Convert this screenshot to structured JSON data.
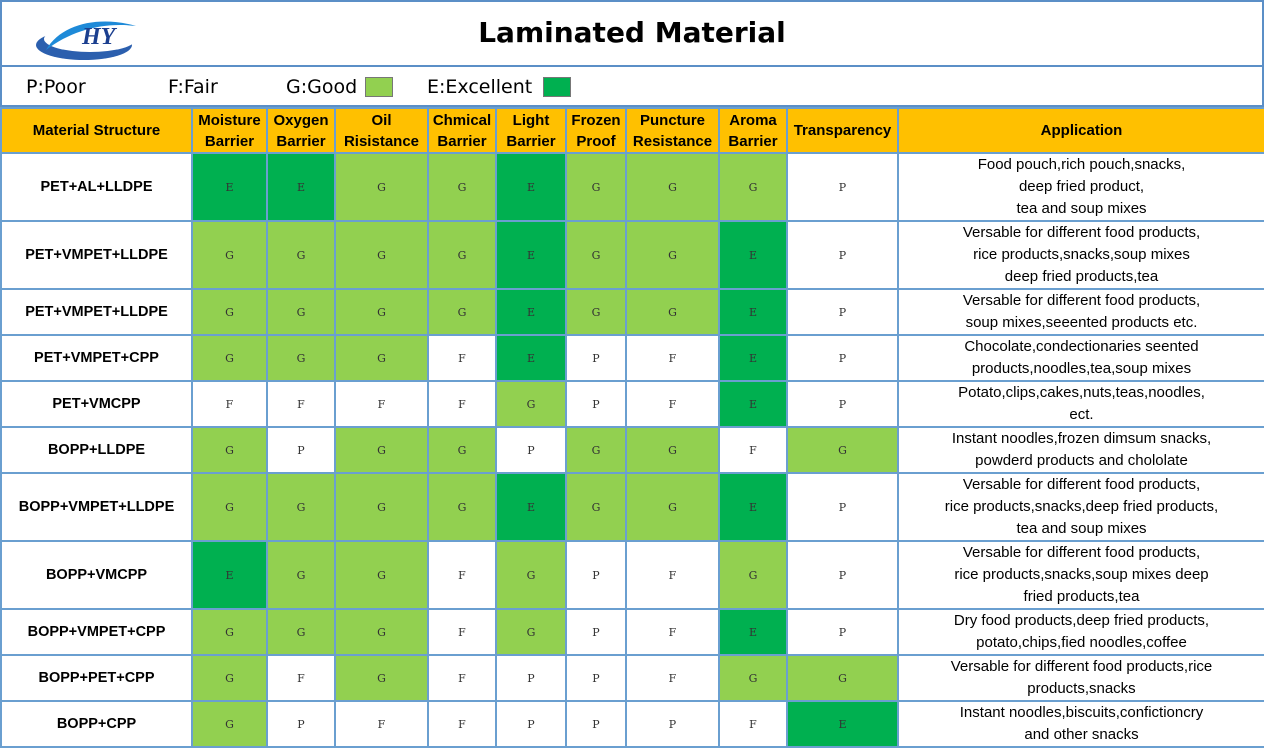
{
  "title": "Laminated Material",
  "logo_text": "HY",
  "legend": [
    {
      "label": "P:Poor",
      "color": ""
    },
    {
      "label": "F:Fair",
      "color": ""
    },
    {
      "label": "G:Good",
      "color": "#92d050"
    },
    {
      "label": "E:Excellent",
      "color": "#00b050"
    }
  ],
  "colors": {
    "excellent": "#00b050",
    "good": "#92d050",
    "header": "#ffc000",
    "grid": "#6a9fd0"
  },
  "headers": [
    "Material Structure",
    "Moisture Barrier",
    "Oxygen Barrier",
    "Oil Risistance",
    "Chmical Barrier",
    "Light Barrier",
    "Frozen Proof",
    "Puncture Resistance",
    "Aroma Barrier",
    "Transparency",
    "Application"
  ],
  "rows": [
    {
      "material": "PET+AL+LLDPE",
      "ratings": [
        "E",
        "E",
        "G",
        "G",
        "E",
        "G",
        "G",
        "G",
        "P"
      ],
      "application": [
        "Food pouch,rich pouch,snacks,",
        "deep fried product,",
        "tea and soup mixes"
      ]
    },
    {
      "material": "PET+VMPET+LLDPE",
      "ratings": [
        "G",
        "G",
        "G",
        "G",
        "E",
        "G",
        "G",
        "E",
        "P"
      ],
      "application": [
        "Versable for different food products,",
        "rice products,snacks,soup mixes",
        "deep fried products,tea"
      ]
    },
    {
      "material": "PET+VMPET+LLDPE",
      "ratings": [
        "G",
        "G",
        "G",
        "G",
        "E",
        "G",
        "G",
        "E",
        "P"
      ],
      "application": [
        "Versable for different food products,",
        "soup mixes,seeented products etc."
      ]
    },
    {
      "material": "PET+VMPET+CPP",
      "ratings": [
        "G",
        "G",
        "G",
        "F",
        "E",
        "P",
        "F",
        "E",
        "P"
      ],
      "application": [
        "Chocolate,condectionaries seented",
        "products,noodles,tea,soup mixes"
      ]
    },
    {
      "material": "PET+VMCPP",
      "ratings": [
        "F",
        "F",
        "F",
        "F",
        "G",
        "P",
        "F",
        "E",
        "P"
      ],
      "application": [
        "Potato,clips,cakes,nuts,teas,noodles,",
        "ect."
      ]
    },
    {
      "material": "BOPP+LLDPE",
      "ratings": [
        "G",
        "P",
        "G",
        "G",
        "P",
        "G",
        "G",
        "F",
        "G"
      ],
      "application": [
        "Instant noodles,frozen dimsum snacks,",
        "powderd products and chololate"
      ]
    },
    {
      "material": "BOPP+VMPET+LLDPE",
      "ratings": [
        "G",
        "G",
        "G",
        "G",
        "E",
        "G",
        "G",
        "E",
        "P"
      ],
      "application": [
        "Versable for different food products,",
        "rice products,snacks,deep fried products,",
        "tea and soup mixes"
      ]
    },
    {
      "material": "BOPP+VMCPP",
      "ratings": [
        "E",
        "G",
        "G",
        "F",
        "G",
        "P",
        "F",
        "G",
        "P"
      ],
      "application": [
        "Versable for different food products,",
        "rice products,snacks,soup mixes deep",
        "fried products,tea"
      ]
    },
    {
      "material": "BOPP+VMPET+CPP",
      "ratings": [
        "G",
        "G",
        "G",
        "F",
        "G",
        "P",
        "F",
        "E",
        "P"
      ],
      "application": [
        "Dry food products,deep fried products,",
        "potato,chips,fied noodles,coffee"
      ]
    },
    {
      "material": "BOPP+PET+CPP",
      "ratings": [
        "G",
        "F",
        "G",
        "F",
        "P",
        "P",
        "F",
        "G",
        "G"
      ],
      "application": [
        "Versable for different food products,rice",
        "products,snacks"
      ]
    },
    {
      "material": "BOPP+CPP",
      "ratings": [
        "G",
        "P",
        "F",
        "F",
        "P",
        "P",
        "P",
        "F",
        "E"
      ],
      "application": [
        "Instant noodles,biscuits,confictioncry",
        "and other snacks"
      ]
    }
  ]
}
